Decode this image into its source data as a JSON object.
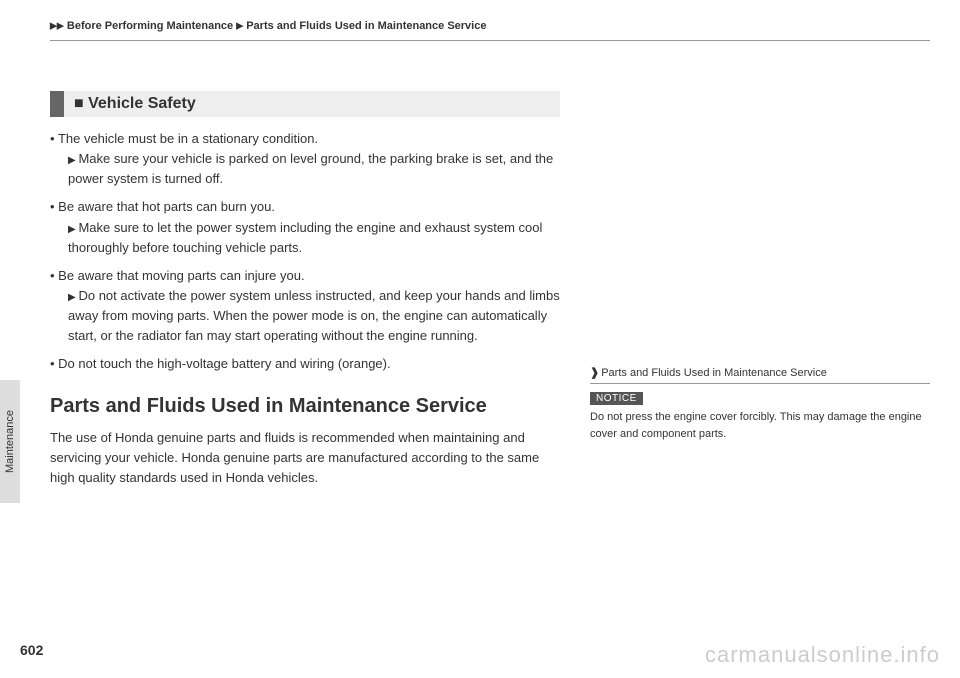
{
  "header": {
    "breadcrumb1": "Before Performing Maintenance",
    "breadcrumb2": "Parts and Fluids Used in Maintenance Service"
  },
  "sideTab": "Maintenance",
  "vehicleSafety": {
    "title": "Vehicle Safety",
    "items": [
      {
        "main": "The vehicle must be in a stationary condition.",
        "sub": "Make sure your vehicle is parked on level ground, the parking brake is set, and the power system is turned off."
      },
      {
        "main": "Be aware that hot parts can burn you.",
        "sub": "Make sure to let the power system including the engine and exhaust system cool thoroughly before touching vehicle parts."
      },
      {
        "main": "Be aware that moving parts can injure you.",
        "sub": "Do not activate the power system unless instructed, and keep your hands and limbs away from moving parts. When the power mode is on, the engine can automatically start, or the radiator fan may start operating without the engine running."
      },
      {
        "main": "Do not touch the high-voltage battery and wiring (orange).",
        "sub": null
      }
    ]
  },
  "partsFluids": {
    "title": "Parts and Fluids Used in Maintenance Service",
    "para": "The use of Honda genuine parts and fluids is recommended when maintaining and servicing your vehicle. Honda genuine parts are manufactured according to the same high quality standards used in Honda vehicles."
  },
  "rightCol": {
    "refTitle": "Parts and Fluids Used in Maintenance Service",
    "noticeLabel": "NOTICE",
    "noticeText": "Do not press the engine cover forcibly. This may damage the engine cover and component parts."
  },
  "pageNumber": "602",
  "watermark": "carmanualsonline.info"
}
